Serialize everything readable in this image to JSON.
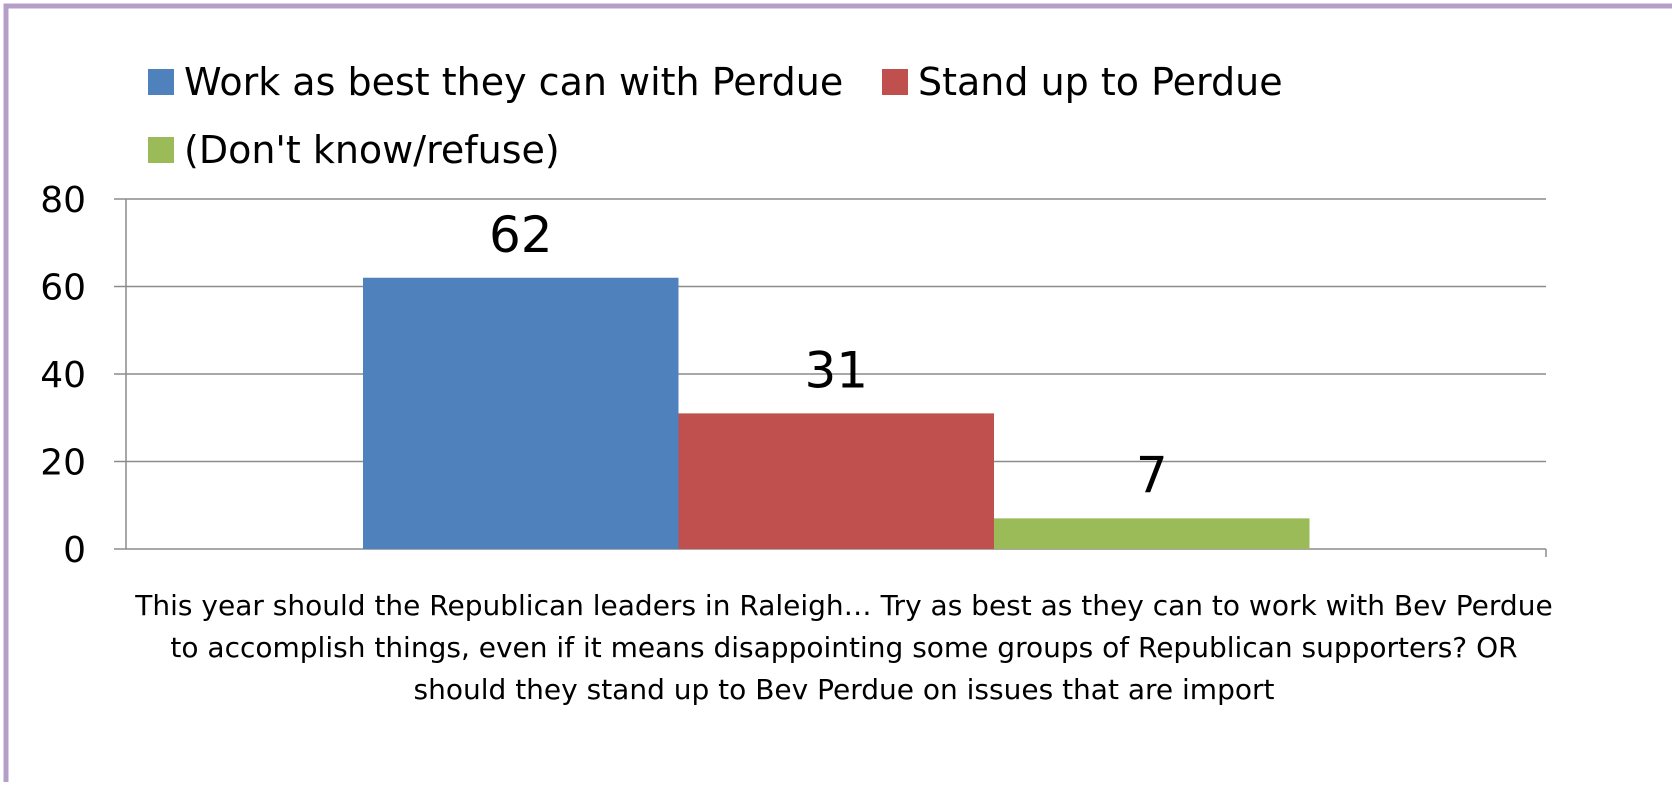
{
  "colors": {
    "border": "#b49fc9",
    "grid": "#8c8c8c",
    "work_with": "#4f81bd",
    "stand_up": "#c0504d",
    "dont_know": "#9bbb59"
  },
  "chart_data": {
    "type": "bar",
    "categories": [
      "This year should the Republican leaders in Raleigh… Try as best as they can to work with Bev Perdue to accomplish things, even if it means disappointing some groups of Republican supporters?  OR should they stand up to Bev Perdue on issues that are import"
    ],
    "category_label_lines": [
      "This year should the Republican leaders in Raleigh… Try as best as they can to work with Bev Perdue",
      "to accomplish things, even if it means disappointing some groups of Republican supporters?  OR",
      "should they stand up to Bev Perdue on issues that are import"
    ],
    "series": [
      {
        "name": "Work as best they can with Perdue",
        "values": [
          62
        ],
        "color": "#4f81bd"
      },
      {
        "name": "Stand up to Perdue",
        "values": [
          31
        ],
        "color": "#c0504d"
      },
      {
        "name": "(Don't know/refuse)",
        "values": [
          7
        ],
        "color": "#9bbb59"
      }
    ],
    "ylim": [
      0,
      80
    ],
    "yticks": [
      0,
      20,
      40,
      60,
      80
    ],
    "grid": true,
    "legend_position": "top-left"
  }
}
